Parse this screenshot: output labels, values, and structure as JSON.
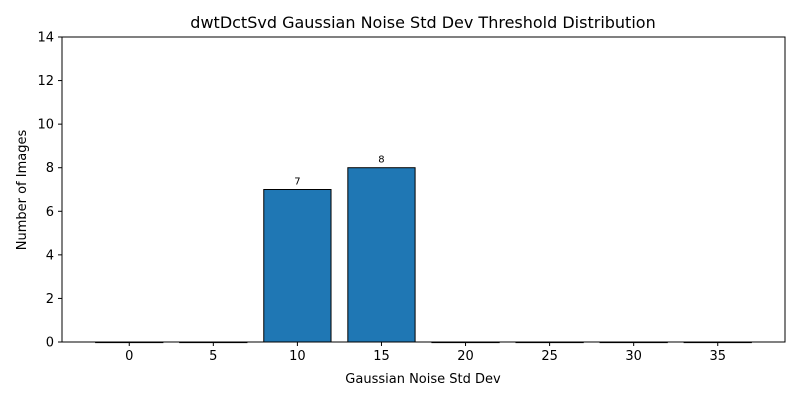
{
  "chart_data": {
    "type": "bar",
    "title": "dwtDctSvd Gaussian Noise Std Dev Threshold Distribution",
    "xlabel": "Gaussian Noise Std Dev",
    "ylabel": "Number of Images",
    "categories": [
      0,
      5,
      10,
      15,
      20,
      25,
      30,
      35
    ],
    "values": [
      0,
      0,
      7,
      8,
      0,
      0,
      0,
      0
    ],
    "data_labels": [
      "",
      "",
      "7",
      "8",
      "",
      "",
      "",
      ""
    ],
    "x_ticks": [
      "0",
      "5",
      "10",
      "15",
      "20",
      "25",
      "30",
      "35"
    ],
    "y_ticks": [
      "0",
      "2",
      "4",
      "6",
      "8",
      "10",
      "12",
      "14"
    ],
    "xlim": [
      -4,
      39
    ],
    "ylim": [
      0,
      14
    ],
    "bar_width": 4,
    "bar_color": "#1f77b4",
    "edge_color": "#000000",
    "grid": false,
    "legend": "none"
  }
}
